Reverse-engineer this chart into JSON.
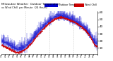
{
  "title": "Milwaukee Weather  Outdoor Temperature",
  "subtitle": "vs Wind Chill  per Minute  (24 Hours)",
  "legend_temp_label": "Outdoor Temp",
  "legend_wc_label": "Wind Chill",
  "temp_color": "#0000cc",
  "wc_color": "#cc0000",
  "legend_temp_color": "#0000cc",
  "legend_wc_color": "#cc0000",
  "bg_color": "#ffffff",
  "ylim": [
    2,
    62
  ],
  "yticks": [
    10,
    20,
    30,
    40,
    50,
    60
  ],
  "ytick_labels": [
    "10",
    "20",
    "30",
    "40",
    "50",
    "60"
  ],
  "num_minutes": 1440,
  "temp_curve_x": [
    0,
    50,
    100,
    150,
    200,
    250,
    300,
    350,
    400,
    450,
    500,
    550,
    600,
    650,
    700,
    750,
    800,
    850,
    900,
    950,
    1000,
    1050,
    1100,
    1150,
    1200,
    1250,
    1300,
    1350,
    1400,
    1439
  ],
  "temp_curve_y": [
    20,
    18,
    16,
    13,
    10,
    8,
    9,
    11,
    15,
    20,
    26,
    32,
    37,
    42,
    46,
    50,
    53,
    55,
    55,
    54,
    52,
    50,
    48,
    45,
    42,
    38,
    33,
    26,
    18,
    16
  ],
  "wc_curve_x": [
    0,
    50,
    100,
    150,
    200,
    250,
    300,
    350,
    400,
    450,
    500,
    550,
    600,
    650,
    700,
    750,
    800,
    850,
    900,
    950,
    1000,
    1050,
    1100,
    1150,
    1200,
    1250,
    1300,
    1350,
    1400,
    1439
  ],
  "wc_curve_y": [
    14,
    12,
    10,
    7,
    5,
    3,
    5,
    7,
    11,
    16,
    22,
    28,
    33,
    38,
    43,
    47,
    50,
    52,
    53,
    52,
    50,
    48,
    46,
    43,
    40,
    36,
    31,
    24,
    14,
    12
  ],
  "bar_noise_seed": 7,
  "bar_noise_scale": 5.5,
  "bar_every": 2,
  "vline_x": [
    360,
    720,
    1080
  ],
  "xtick_positions": [
    0,
    60,
    120,
    180,
    240,
    300,
    360,
    420,
    480,
    540,
    600,
    660,
    720,
    780,
    840,
    900,
    960,
    1020,
    1080,
    1140,
    1200,
    1260,
    1320,
    1380,
    1439
  ],
  "xtick_labels": [
    "01",
    "02",
    "03",
    "04",
    "05",
    "06",
    "07",
    "08",
    "09",
    "10",
    "11",
    "12",
    "13",
    "14",
    "15",
    "16",
    "17",
    "18",
    "19",
    "20",
    "21",
    "22",
    "23",
    "24",
    "  "
  ]
}
